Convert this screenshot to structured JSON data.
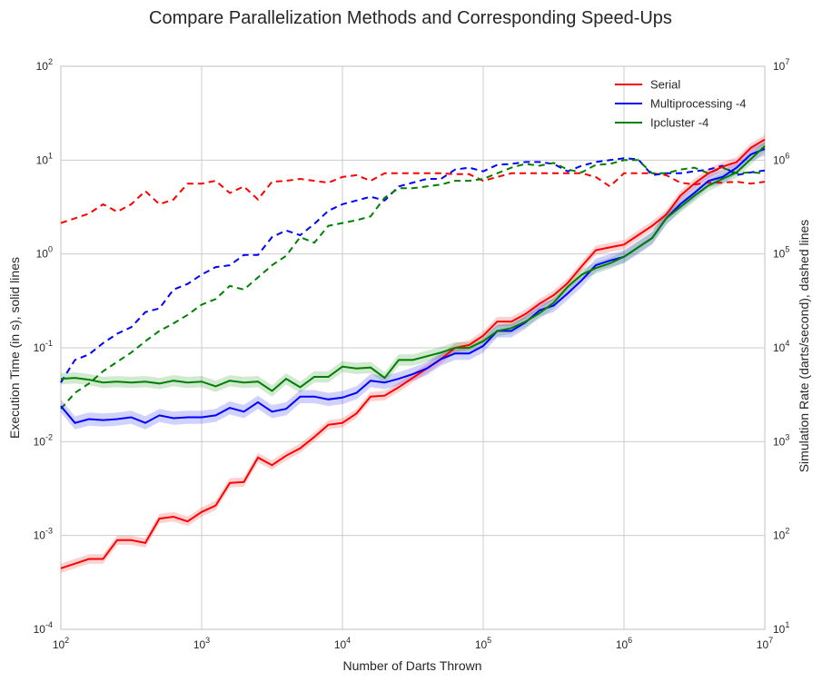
{
  "chart_data": {
    "type": "line",
    "title": "Compare Parallelization Methods and Corresponding Speed-Ups",
    "xlabel": "Number of Darts Thrown",
    "ylabel_left": "Execution Time (in s), solid lines",
    "ylabel_right": "Simulation Rate (darts/second), dashed lines",
    "x_scale": "log",
    "xlim_exp": [
      2,
      7
    ],
    "ylim_left_exp": [
      -4,
      2
    ],
    "ylim_right_exp": [
      1,
      7
    ],
    "x_ticks": [
      {
        "base": "10",
        "exp": "2"
      },
      {
        "base": "10",
        "exp": "3"
      },
      {
        "base": "10",
        "exp": "4"
      },
      {
        "base": "10",
        "exp": "5"
      },
      {
        "base": "10",
        "exp": "6"
      },
      {
        "base": "10",
        "exp": "7"
      }
    ],
    "y_ticks_left": [
      {
        "base": "10",
        "exp": "-4"
      },
      {
        "base": "10",
        "exp": "-3"
      },
      {
        "base": "10",
        "exp": "-2"
      },
      {
        "base": "10",
        "exp": "-1"
      },
      {
        "base": "10",
        "exp": "0"
      },
      {
        "base": "10",
        "exp": "1"
      },
      {
        "base": "10",
        "exp": "2"
      }
    ],
    "y_ticks_right": [
      {
        "base": "10",
        "exp": "1"
      },
      {
        "base": "10",
        "exp": "2"
      },
      {
        "base": "10",
        "exp": "3"
      },
      {
        "base": "10",
        "exp": "4"
      },
      {
        "base": "10",
        "exp": "5"
      },
      {
        "base": "10",
        "exp": "6"
      },
      {
        "base": "10",
        "exp": "7"
      }
    ],
    "legend": "top-right",
    "grid": true,
    "x_log10": [
      2.0,
      2.1,
      2.2,
      2.3,
      2.4,
      2.5,
      2.6,
      2.7,
      2.8,
      2.9,
      3.0,
      3.1,
      3.2,
      3.3,
      3.4,
      3.5,
      3.6,
      3.7,
      3.8,
      3.9,
      4.0,
      4.1,
      4.2,
      4.3,
      4.4,
      4.5,
      4.6,
      4.7,
      4.8,
      4.9,
      5.0,
      5.1,
      5.2,
      5.3,
      5.4,
      5.5,
      5.6,
      5.7,
      5.8,
      5.9,
      6.0,
      6.1,
      6.2,
      6.3,
      6.4,
      6.5,
      6.6,
      6.7,
      6.8,
      6.9,
      7.0
    ],
    "series": [
      {
        "name": "Serial",
        "color": "#ff0000",
        "time_log10": [
          -3.35,
          -3.3,
          -3.25,
          -3.25,
          -3.05,
          -3.05,
          -3.08,
          -2.82,
          -2.8,
          -2.85,
          -2.75,
          -2.68,
          -2.44,
          -2.43,
          -2.17,
          -2.25,
          -2.15,
          -2.07,
          -1.95,
          -1.82,
          -1.8,
          -1.7,
          -1.52,
          -1.51,
          -1.42,
          -1.32,
          -1.22,
          -1.12,
          -1.0,
          -0.97,
          -0.87,
          -0.72,
          -0.72,
          -0.64,
          -0.53,
          -0.44,
          -0.31,
          -0.13,
          0.04,
          0.07,
          0.1,
          0.2,
          0.3,
          0.42,
          0.62,
          0.75,
          0.86,
          0.93,
          0.98,
          1.13,
          1.22
        ],
        "time_band": 0.05,
        "rate_log10": [
          5.33,
          5.38,
          5.43,
          5.53,
          5.45,
          5.53,
          5.67,
          5.53,
          5.58,
          5.75,
          5.75,
          5.78,
          5.65,
          5.72,
          5.58,
          5.77,
          5.78,
          5.8,
          5.78,
          5.76,
          5.82,
          5.84,
          5.78,
          5.86,
          5.86,
          5.86,
          5.86,
          5.86,
          5.85,
          5.85,
          5.78,
          5.82,
          5.86,
          5.86,
          5.86,
          5.86,
          5.86,
          5.86,
          5.82,
          5.72,
          5.86,
          5.86,
          5.86,
          5.84,
          5.76,
          5.74,
          5.76,
          5.76,
          5.77,
          5.75,
          5.77
        ]
      },
      {
        "name": "Multiprocessing -4",
        "color": "#0000ff",
        "time_log10": [
          -1.62,
          -1.8,
          -1.76,
          -1.77,
          -1.76,
          -1.74,
          -1.8,
          -1.72,
          -1.75,
          -1.74,
          -1.74,
          -1.72,
          -1.64,
          -1.68,
          -1.58,
          -1.68,
          -1.65,
          -1.52,
          -1.52,
          -1.55,
          -1.53,
          -1.48,
          -1.35,
          -1.37,
          -1.33,
          -1.28,
          -1.22,
          -1.12,
          -1.06,
          -1.06,
          -0.98,
          -0.82,
          -0.82,
          -0.73,
          -0.6,
          -0.55,
          -0.42,
          -0.28,
          -0.12,
          -0.07,
          -0.03,
          0.07,
          0.17,
          0.38,
          0.53,
          0.65,
          0.78,
          0.82,
          0.92,
          1.06,
          1.12
        ],
        "time_band": 0.07,
        "rate_log10": [
          3.63,
          3.87,
          3.93,
          4.05,
          4.15,
          4.22,
          4.38,
          4.42,
          4.62,
          4.68,
          4.78,
          4.86,
          4.88,
          4.99,
          4.99,
          5.18,
          5.25,
          5.2,
          5.32,
          5.46,
          5.53,
          5.57,
          5.61,
          5.57,
          5.72,
          5.76,
          5.8,
          5.8,
          5.9,
          5.92,
          5.88,
          5.95,
          5.96,
          5.98,
          5.98,
          5.96,
          5.88,
          5.94,
          5.98,
          6.0,
          6.02,
          6.01,
          5.84,
          5.86,
          5.86,
          5.88,
          5.9,
          5.94,
          5.84,
          5.87,
          5.89
        ]
      },
      {
        "name": "Ipcluster -4",
        "color": "#008000",
        "time_log10": [
          -1.33,
          -1.32,
          -1.34,
          -1.37,
          -1.36,
          -1.37,
          -1.36,
          -1.38,
          -1.35,
          -1.37,
          -1.36,
          -1.41,
          -1.35,
          -1.37,
          -1.36,
          -1.46,
          -1.33,
          -1.42,
          -1.31,
          -1.31,
          -1.2,
          -1.22,
          -1.21,
          -1.32,
          -1.13,
          -1.13,
          -1.09,
          -1.05,
          -1.0,
          -1.0,
          -0.93,
          -0.82,
          -0.79,
          -0.72,
          -0.63,
          -0.52,
          -0.35,
          -0.22,
          -0.15,
          -0.1,
          -0.03,
          0.07,
          0.17,
          0.38,
          0.5,
          0.62,
          0.73,
          0.8,
          0.87,
          1.01,
          1.15
        ],
        "time_band": 0.06,
        "rate_log10": [
          3.35,
          3.52,
          3.62,
          3.75,
          3.85,
          3.95,
          4.07,
          4.18,
          4.26,
          4.35,
          4.46,
          4.52,
          4.66,
          4.62,
          4.75,
          4.88,
          4.98,
          5.18,
          5.12,
          5.3,
          5.33,
          5.36,
          5.4,
          5.6,
          5.7,
          5.7,
          5.72,
          5.74,
          5.78,
          5.78,
          5.8,
          5.86,
          5.92,
          5.96,
          5.94,
          5.97,
          5.9,
          5.87,
          5.95,
          5.96,
          6.0,
          6.0,
          5.86,
          5.86,
          5.9,
          5.92,
          5.86,
          5.92,
          5.86,
          5.87,
          5.86
        ]
      }
    ]
  }
}
